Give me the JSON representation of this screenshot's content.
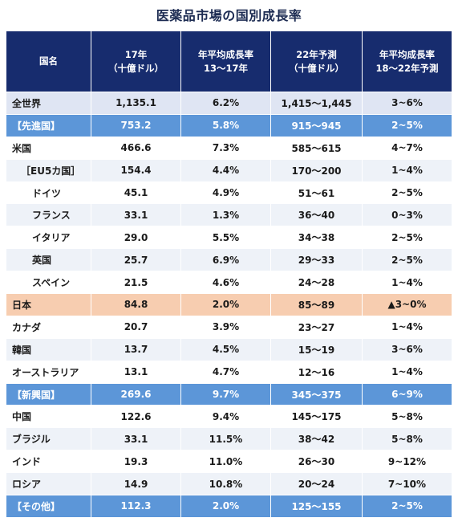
{
  "chart_data": {
    "type": "table",
    "title": "医薬品市場の国別成長率",
    "columns": [
      {
        "line1": "国名",
        "line2": ""
      },
      {
        "line1": "17年",
        "line2": "（十億ドル）"
      },
      {
        "line1": "年平均成長率",
        "line2": "13～17年"
      },
      {
        "line1": "22年予測",
        "line2": "（十億ドル）"
      },
      {
        "line1": "年平均成長率",
        "line2": "18～22年予測"
      }
    ],
    "rows": [
      {
        "name": "全世界",
        "v2017": "1,135.1",
        "cagr_13_17": "6.2%",
        "f2022": "1,415～1,445",
        "cagr_18_22": "3~6%"
      },
      {
        "name": "【先進国】",
        "v2017": "753.2",
        "cagr_13_17": "5.8%",
        "f2022": "915～945",
        "cagr_18_22": "2~5%"
      },
      {
        "name": "米国",
        "v2017": "466.6",
        "cagr_13_17": "7.3%",
        "f2022": "585～615",
        "cagr_18_22": "4~7%"
      },
      {
        "name": "［EU5カ国］",
        "v2017": "154.4",
        "cagr_13_17": "4.4%",
        "f2022": "170～200",
        "cagr_18_22": "1~4%"
      },
      {
        "name": "ドイツ",
        "v2017": "45.1",
        "cagr_13_17": "4.9%",
        "f2022": "51～61",
        "cagr_18_22": "2~5%"
      },
      {
        "name": "フランス",
        "v2017": "33.1",
        "cagr_13_17": "1.3%",
        "f2022": "36～40",
        "cagr_18_22": "0~3%"
      },
      {
        "name": "イタリア",
        "v2017": "29.0",
        "cagr_13_17": "5.5%",
        "f2022": "34～38",
        "cagr_18_22": "2~5%"
      },
      {
        "name": "英国",
        "v2017": "25.7",
        "cagr_13_17": "6.9%",
        "f2022": "29～33",
        "cagr_18_22": "2~5%"
      },
      {
        "name": "スペイン",
        "v2017": "21.5",
        "cagr_13_17": "4.6%",
        "f2022": "24～28",
        "cagr_18_22": "1~4%"
      },
      {
        "name": "日本",
        "v2017": "84.8",
        "cagr_13_17": "2.0%",
        "f2022": "85～89",
        "cagr_18_22": "▲3~0%"
      },
      {
        "name": "カナダ",
        "v2017": "20.7",
        "cagr_13_17": "3.9%",
        "f2022": "23～27",
        "cagr_18_22": "1~4%"
      },
      {
        "name": "韓国",
        "v2017": "13.7",
        "cagr_13_17": "4.5%",
        "f2022": "15～19",
        "cagr_18_22": "3~6%"
      },
      {
        "name": "オーストラリア",
        "v2017": "13.1",
        "cagr_13_17": "4.7%",
        "f2022": "12～16",
        "cagr_18_22": "1~4%"
      },
      {
        "name": "【新興国】",
        "v2017": "269.6",
        "cagr_13_17": "9.7%",
        "f2022": "345～375",
        "cagr_18_22": "6~9%"
      },
      {
        "name": "中国",
        "v2017": "122.6",
        "cagr_13_17": "9.4%",
        "f2022": "145～175",
        "cagr_18_22": "5~8%"
      },
      {
        "name": "ブラジル",
        "v2017": "33.1",
        "cagr_13_17": "11.5%",
        "f2022": "38～42",
        "cagr_18_22": "5~8%"
      },
      {
        "name": "インド",
        "v2017": "19.3",
        "cagr_13_17": "11.0%",
        "f2022": "26～30",
        "cagr_18_22": "9~12%"
      },
      {
        "name": "ロシア",
        "v2017": "14.9",
        "cagr_13_17": "10.8%",
        "f2022": "20～24",
        "cagr_18_22": "7~10%"
      },
      {
        "name": "【その他】",
        "v2017": "112.3",
        "cagr_13_17": "2.0%",
        "f2022": "125～155",
        "cagr_18_22": "2~5%"
      }
    ]
  },
  "colors": {
    "header_bg": "#172c6e",
    "group_row_bg": "#5c96d8",
    "world_row_bg": "#dfe5f3",
    "japan_row_bg": "#f7cdb0",
    "alt_row_bg": "#eef2f8",
    "title_color": "#1c2b52"
  }
}
